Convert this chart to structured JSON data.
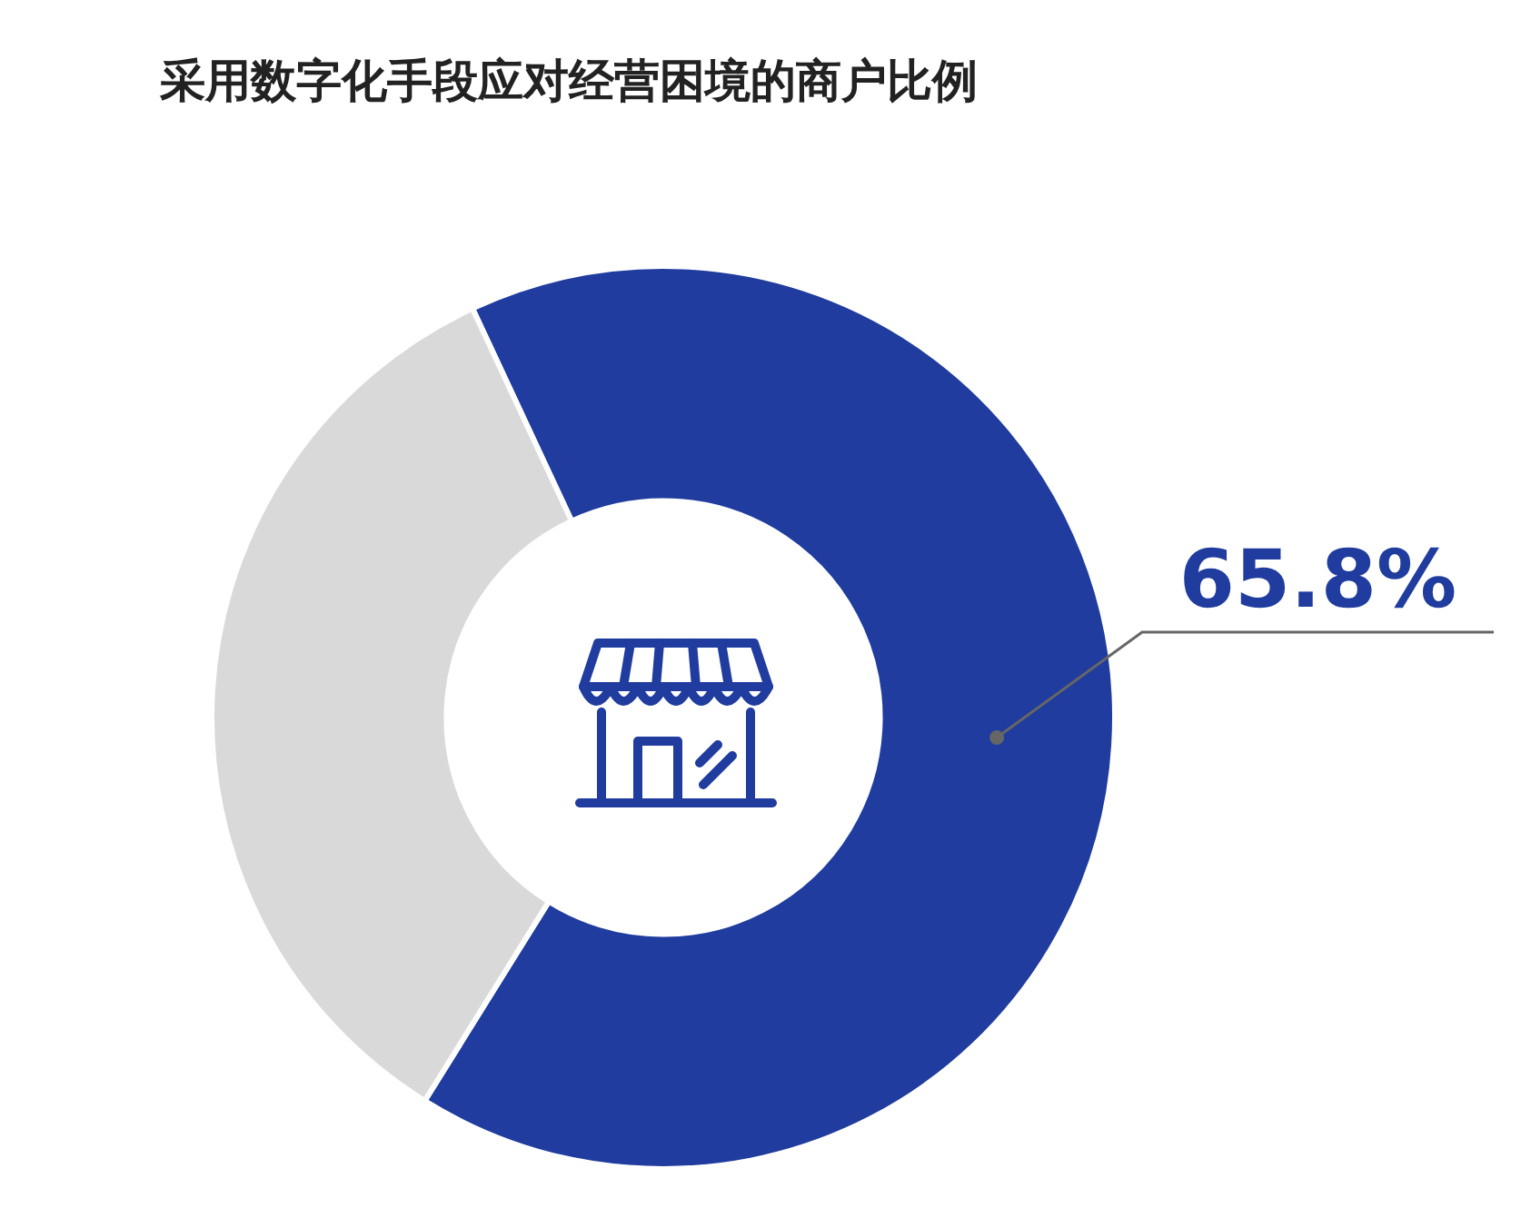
{
  "chart_data": {
    "type": "donut",
    "title": "采用数字化手段应对经营困境的商户比例",
    "categories": [
      null,
      null
    ],
    "values": [
      65.8,
      34.2
    ],
    "colors": [
      "#1f3c9e",
      "#d9d9d9"
    ],
    "value_labels": [
      "65.8%",
      null
    ]
  }
}
